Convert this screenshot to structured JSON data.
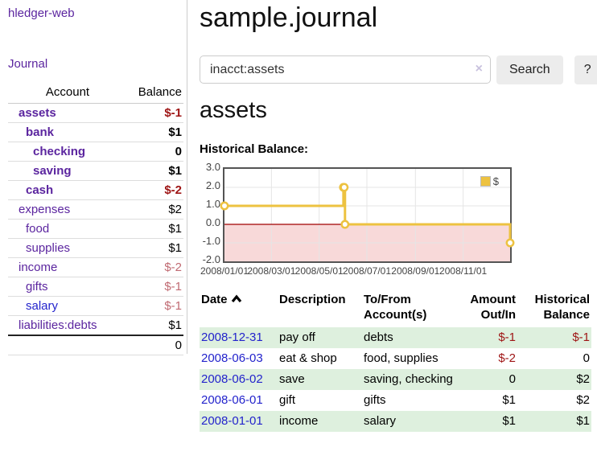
{
  "colors": {
    "purple": "#5b259f",
    "link_blue": "#2323cc",
    "negative_strong": "#9e1414",
    "negative_soft": "#c06a72",
    "row_green": "#def0de",
    "chart_gold": "#edc240",
    "chart_negative_fill": "#f8d9d9",
    "chart_zero_line": "#a00000",
    "button_bg": "#ececec"
  },
  "sidebar": {
    "brand": "hledger-web",
    "journal_link": "Journal",
    "accounts_table": {
      "headers": [
        "Account",
        "Balance"
      ],
      "rows": [
        {
          "account": "assets",
          "balance": "$-1",
          "indent": 1,
          "bold": true
        },
        {
          "account": "bank",
          "balance": "$1",
          "indent": 2,
          "bold": true
        },
        {
          "account": "checking",
          "balance": "0",
          "indent": 3,
          "bold": true
        },
        {
          "account": "saving",
          "balance": "$1",
          "indent": 3,
          "bold": true
        },
        {
          "account": "cash",
          "balance": "$-2",
          "indent": 2,
          "bold": true
        },
        {
          "account": "expenses",
          "balance": "$2",
          "indent": 1,
          "bold": false
        },
        {
          "account": "food",
          "balance": "$1",
          "indent": 2,
          "bold": false
        },
        {
          "account": "supplies",
          "balance": "$1",
          "indent": 2,
          "bold": false
        },
        {
          "account": "income",
          "balance": "$-2",
          "indent": 1,
          "bold": false
        },
        {
          "account": "gifts",
          "balance": "$-1",
          "indent": 2,
          "bold": false
        },
        {
          "account": "salary",
          "balance": "$-1",
          "indent": 2,
          "bold": false,
          "link_color": "blue"
        },
        {
          "account": "liabilities:debts",
          "balance": "$1",
          "indent": 1,
          "bold": false
        }
      ],
      "total": "0"
    }
  },
  "main": {
    "title": "sample.journal",
    "search": {
      "value": "inacct:assets",
      "clear_icon": "×",
      "button_label": "Search",
      "help_label": "?"
    },
    "account_heading": "assets",
    "chart_heading": "Historical Balance:",
    "transactions": {
      "headers": [
        "Date",
        "Description",
        "To/From\nAccount(s)",
        "Amount\nOut/In",
        "Historical\nBalance"
      ],
      "rows": [
        {
          "date": "2008-12-31",
          "description": "pay off",
          "accounts": "debts",
          "amount": "$-1",
          "balance": "$-1"
        },
        {
          "date": "2008-06-03",
          "description": "eat & shop",
          "accounts": "food, supplies",
          "amount": "$-2",
          "balance": "0"
        },
        {
          "date": "2008-06-02",
          "description": "save",
          "accounts": "saving, checking",
          "amount": "0",
          "balance": "$2"
        },
        {
          "date": "2008-06-01",
          "description": "gift",
          "accounts": "gifts",
          "amount": "$1",
          "balance": "$2"
        },
        {
          "date": "2008-01-01",
          "description": "income",
          "accounts": "salary",
          "amount": "$1",
          "balance": "$1"
        }
      ]
    }
  },
  "chart_data": {
    "type": "line",
    "title": "Historical Balance",
    "step": true,
    "series": [
      {
        "name": "$",
        "points": [
          [
            "2008-01-01",
            1
          ],
          [
            "2008-06-01",
            2
          ],
          [
            "2008-06-02",
            2
          ],
          [
            "2008-06-03",
            0
          ],
          [
            "2008-12-31",
            -1
          ]
        ]
      }
    ],
    "xlim": [
      "2008-01-01",
      "2008-12-31"
    ],
    "ylim": [
      -2.0,
      3.0
    ],
    "x_ticks": [
      "2008/01/01",
      "2008/03/01",
      "2008/05/01",
      "2008/07/01",
      "2008/09/01",
      "2008/11/01"
    ],
    "y_ticks": [
      3.0,
      2.0,
      1.0,
      0.0,
      -1.0,
      -2.0
    ],
    "grid": true,
    "legend": {
      "label": "$",
      "position": "top-right"
    }
  }
}
